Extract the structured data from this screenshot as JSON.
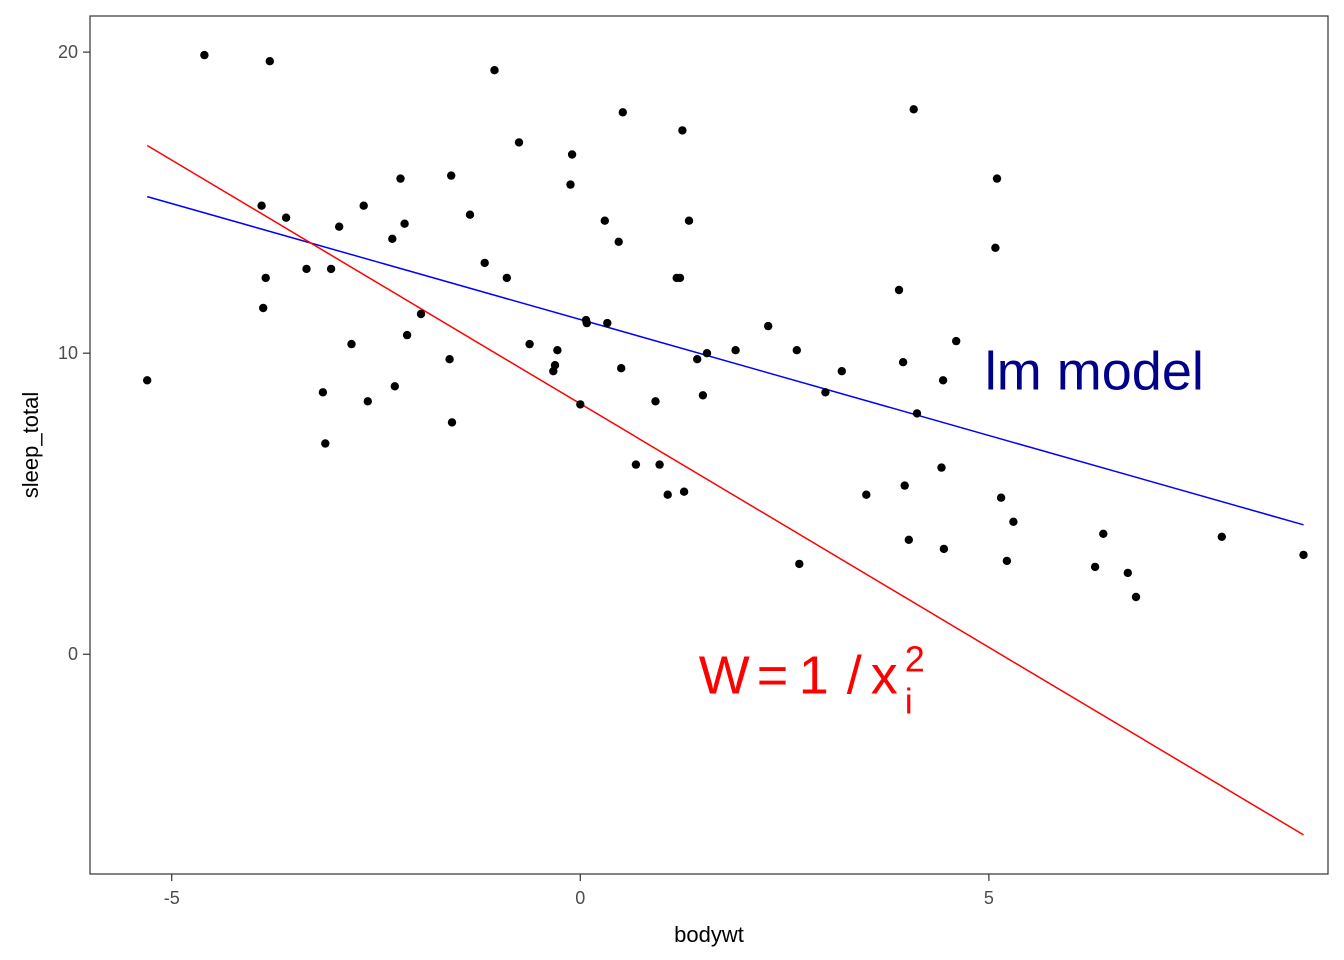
{
  "chart_data": {
    "type": "scatter",
    "xlabel": "bodywt",
    "ylabel": "sleep_total",
    "xlim": [
      -6.0,
      9.15
    ],
    "ylim": [
      -7.3,
      21.2
    ],
    "xticks": [
      -5,
      0,
      5
    ],
    "xtick_labels": [
      "-5",
      "0",
      "5"
    ],
    "yticks": [
      0,
      10,
      20
    ],
    "ytick_labels": [
      "0",
      "10",
      "20"
    ],
    "grid": false,
    "points": {
      "color": "#000000",
      "values": [
        [
          -5.3,
          9.1
        ],
        [
          -4.6,
          19.9
        ],
        [
          -3.8,
          19.7
        ],
        [
          -3.9,
          14.9
        ],
        [
          -3.85,
          12.5
        ],
        [
          -3.88,
          11.5
        ],
        [
          -3.6,
          14.5
        ],
        [
          -3.35,
          12.8
        ],
        [
          -3.15,
          8.7
        ],
        [
          -3.12,
          7.0
        ],
        [
          -3.05,
          12.8
        ],
        [
          -2.95,
          14.2
        ],
        [
          -2.8,
          10.3
        ],
        [
          -2.65,
          14.9
        ],
        [
          -2.6,
          8.4
        ],
        [
          -2.3,
          13.8
        ],
        [
          -2.27,
          8.9
        ],
        [
          -2.2,
          15.8
        ],
        [
          -2.15,
          14.3
        ],
        [
          -2.12,
          10.6
        ],
        [
          -1.95,
          11.3
        ],
        [
          -1.6,
          9.8
        ],
        [
          -1.58,
          15.9
        ],
        [
          -1.57,
          7.7
        ],
        [
          -1.35,
          14.6
        ],
        [
          -1.17,
          13.0
        ],
        [
          -1.05,
          19.4
        ],
        [
          -0.9,
          12.5
        ],
        [
          -0.75,
          17.0
        ],
        [
          -0.62,
          10.3
        ],
        [
          -0.33,
          9.4
        ],
        [
          -0.31,
          9.6
        ],
        [
          -0.28,
          10.1
        ],
        [
          -0.12,
          15.6
        ],
        [
          -0.1,
          16.6
        ],
        [
          0.0,
          8.3
        ],
        [
          0.07,
          11.1
        ],
        [
          0.08,
          11.0
        ],
        [
          0.3,
          14.4
        ],
        [
          0.33,
          11.0
        ],
        [
          0.47,
          13.7
        ],
        [
          0.5,
          9.5
        ],
        [
          0.52,
          18.0
        ],
        [
          0.68,
          6.3
        ],
        [
          0.92,
          8.4
        ],
        [
          0.97,
          6.3
        ],
        [
          1.07,
          5.3
        ],
        [
          1.18,
          12.5
        ],
        [
          1.22,
          12.5
        ],
        [
          1.25,
          17.4
        ],
        [
          1.27,
          5.4
        ],
        [
          1.33,
          14.4
        ],
        [
          1.43,
          9.8
        ],
        [
          1.5,
          8.6
        ],
        [
          1.55,
          10.0
        ],
        [
          1.9,
          10.1
        ],
        [
          2.3,
          10.9
        ],
        [
          2.65,
          10.1
        ],
        [
          2.68,
          3.0
        ],
        [
          3.0,
          8.7
        ],
        [
          3.2,
          9.4
        ],
        [
          3.5,
          5.3
        ],
        [
          3.9,
          12.1
        ],
        [
          3.95,
          9.7
        ],
        [
          3.97,
          5.6
        ],
        [
          4.02,
          3.8
        ],
        [
          4.08,
          18.1
        ],
        [
          4.12,
          8.0
        ],
        [
          4.42,
          6.2
        ],
        [
          4.44,
          9.1
        ],
        [
          4.45,
          3.5
        ],
        [
          4.6,
          10.4
        ],
        [
          5.08,
          13.5
        ],
        [
          5.1,
          15.8
        ],
        [
          5.15,
          5.2
        ],
        [
          5.22,
          3.1
        ],
        [
          5.3,
          4.4
        ],
        [
          6.3,
          2.9
        ],
        [
          6.4,
          4.0
        ],
        [
          6.7,
          2.7
        ],
        [
          6.8,
          1.9
        ],
        [
          7.85,
          3.9
        ],
        [
          8.85,
          3.3
        ]
      ]
    },
    "lines": [
      {
        "color": "#0000ff",
        "x": [
          -5.3,
          8.85
        ],
        "y": [
          15.2,
          4.3
        ]
      },
      {
        "color": "#ff0000",
        "x": [
          -5.3,
          8.85
        ],
        "y": [
          16.9,
          -6.0
        ]
      }
    ],
    "annotations": [
      {
        "text": "lm model",
        "color": "#00008b",
        "x": 4.95,
        "y": 8.8
      },
      {
        "text_main": "W",
        "text_eq": "=",
        "text_one": "1",
        "text_slash": "/",
        "text_var": "x",
        "text_sub": "i",
        "text_sup": "2",
        "color": "#ff0000",
        "x": 1.45,
        "y": -1.3
      }
    ]
  }
}
